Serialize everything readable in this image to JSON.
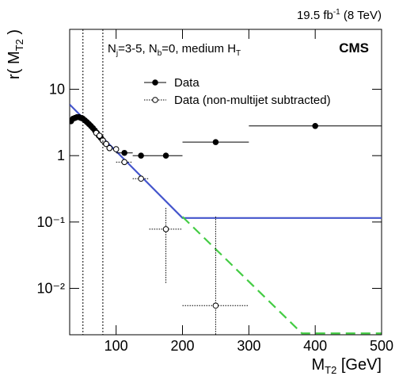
{
  "chart_data": {
    "type": "scatter",
    "lumi": [
      "19.5 fb",
      "-1",
      " (8 TeV)"
    ],
    "experiment": "CMS",
    "annotation": [
      "N",
      "j",
      "=3-5, N",
      "b",
      "=0, medium H",
      "T"
    ],
    "x_label": [
      "M",
      "T2",
      " [GeV]"
    ],
    "y_label": [
      "r( M",
      "T2",
      " )"
    ],
    "xlim": [
      30,
      500
    ],
    "xticks": [
      100,
      200,
      300,
      400,
      500
    ],
    "ylim": [
      0.002,
      80
    ],
    "log_y": true,
    "yticks": [
      {
        "value": 0.01,
        "label": "10⁻²"
      },
      {
        "value": 0.1,
        "label": "10⁻¹"
      },
      1,
      10
    ],
    "vertical_lines": [
      50,
      80
    ],
    "legend": "upper left",
    "series": [
      {
        "name": "Data",
        "color": "#000000",
        "marker": "filled",
        "x": [
          32,
          35,
          38,
          41,
          44,
          47,
          50,
          53,
          56,
          59,
          62,
          65,
          68,
          71,
          74,
          77,
          80,
          85,
          90,
          112.5,
          137.5,
          175,
          250,
          400
        ],
        "values": [
          3.3,
          3.6,
          3.7,
          3.8,
          3.8,
          3.7,
          3.6,
          3.4,
          3.2,
          3.0,
          2.8,
          2.6,
          2.4,
          2.2,
          2.0,
          1.85,
          1.7,
          1.5,
          1.3,
          1.1,
          1.0,
          1.0,
          1.6,
          2.8
        ],
        "xerr": [
          1.5,
          1.5,
          1.5,
          1.5,
          1.5,
          1.5,
          1.5,
          1.5,
          1.5,
          1.5,
          1.5,
          1.5,
          1.5,
          1.5,
          1.5,
          1.5,
          1.5,
          2.5,
          2.5,
          12.5,
          12.5,
          25,
          50,
          100
        ]
      },
      {
        "name": "Data (non-multijet subtracted)",
        "color": "#000000",
        "marker": "open",
        "x": [
          70,
          75,
          80,
          85,
          90,
          100,
          112.5,
          137.5,
          175,
          250
        ],
        "values": [
          2.2,
          2.0,
          1.7,
          1.5,
          1.3,
          1.25,
          0.8,
          0.45,
          0.078,
          0.0055
        ],
        "xerr": [
          2.5,
          2.5,
          2.5,
          2.5,
          2.5,
          5,
          12.5,
          12.5,
          25,
          50
        ],
        "yerr_low": [
          0,
          0,
          0,
          0,
          0,
          0,
          0,
          0,
          0.066,
          0.0055
        ],
        "yerr_high": [
          0,
          0,
          0,
          0,
          0,
          0,
          0,
          0,
          0.085,
          0.115
        ]
      }
    ],
    "fits": [
      {
        "color": "#4455cc",
        "style": "solid",
        "x": [
          30,
          200,
          500
        ],
        "values": [
          5.9,
          0.115,
          0.115
        ]
      },
      {
        "color": "#44cc44",
        "style": "dashed",
        "x": [
          200,
          380,
          500
        ],
        "values": [
          0.12,
          0.0021,
          0.0021
        ]
      }
    ]
  }
}
